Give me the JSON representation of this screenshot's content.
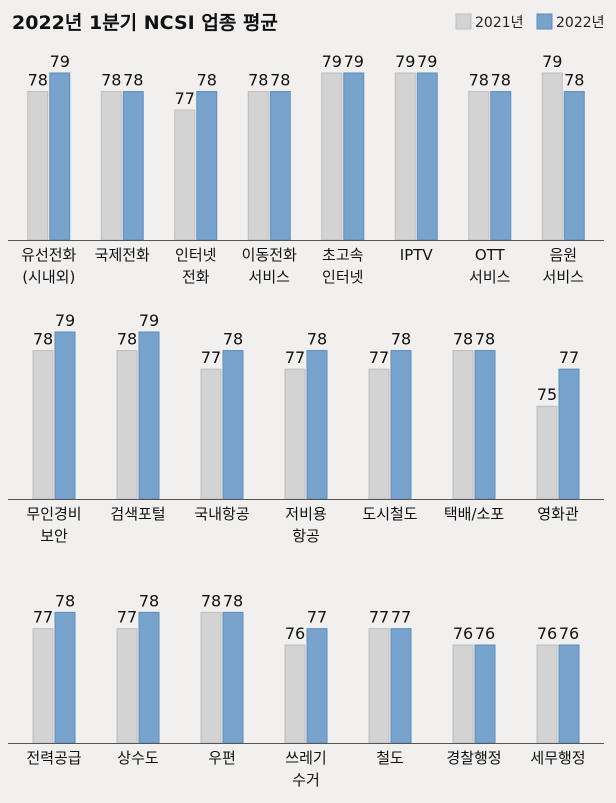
{
  "colors": {
    "y2021": "#d3d3d3",
    "y2021_edge": "#bdbdbd",
    "y2022": "#77a3cd",
    "y2022_edge": "#5e8dba",
    "axis": "#555555",
    "background": "#f1f0ef"
  },
  "chart_data": {
    "type": "bar",
    "title": "2022년 1분기 NCSI 업종 평균",
    "legend": [
      "2021년",
      "2022년"
    ],
    "legend_position": "top-right",
    "ylim": [
      0,
      79
    ],
    "panels": [
      {
        "categories": [
          [
            "유선전화",
            "(시내외)"
          ],
          [
            "국제전화"
          ],
          [
            "인터넷",
            "전화"
          ],
          [
            "이동전화",
            "서비스"
          ],
          [
            "초고속",
            "인터넷"
          ],
          [
            "IPTV"
          ],
          [
            "OTT",
            "서비스"
          ],
          [
            "음원",
            "서비스"
          ]
        ],
        "series": [
          {
            "name": "2021년",
            "values": [
              78,
              78,
              77,
              78,
              79,
              79,
              78,
              79
            ]
          },
          {
            "name": "2022년",
            "values": [
              79,
              78,
              78,
              78,
              79,
              79,
              78,
              78
            ]
          }
        ]
      },
      {
        "categories": [
          [
            "무인경비",
            "보안"
          ],
          [
            "검색포털"
          ],
          [
            "국내항공"
          ],
          [
            "저비용",
            "항공"
          ],
          [
            "도시철도"
          ],
          [
            "택배/소포"
          ],
          [
            "영화관"
          ]
        ],
        "series": [
          {
            "name": "2021년",
            "values": [
              78,
              78,
              77,
              77,
              77,
              78,
              75
            ]
          },
          {
            "name": "2022년",
            "values": [
              79,
              79,
              78,
              78,
              78,
              78,
              77
            ]
          }
        ]
      },
      {
        "categories": [
          [
            "전력공급"
          ],
          [
            "상수도"
          ],
          [
            "우편"
          ],
          [
            "쓰레기",
            "수거"
          ],
          [
            "철도"
          ],
          [
            "경찰행정"
          ],
          [
            "세무행정"
          ]
        ],
        "series": [
          {
            "name": "2021년",
            "values": [
              77,
              77,
              78,
              76,
              77,
              76,
              76
            ]
          },
          {
            "name": "2022년",
            "values": [
              78,
              78,
              78,
              77,
              77,
              76,
              76
            ]
          }
        ]
      }
    ]
  }
}
